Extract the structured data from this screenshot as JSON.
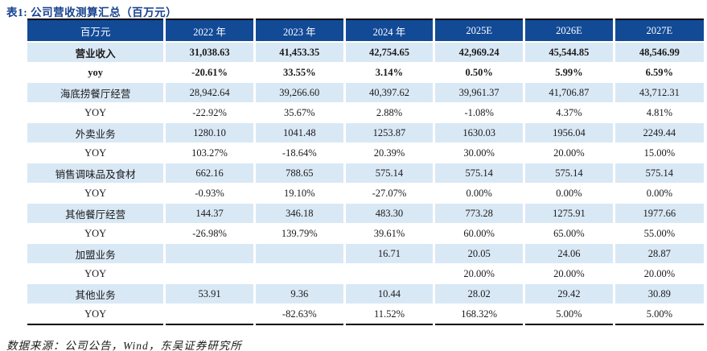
{
  "page": {
    "title": "表1:  公司营收测算汇总（百万元）",
    "source_note": "数据来源：公司公告，Wind，东吴证券研究所"
  },
  "colors": {
    "header_bg": "#124A96",
    "header_text": "#FFFFFF",
    "shaded_row_bg": "#D9E8F5",
    "title_color": "#15418F"
  },
  "table": {
    "columns": [
      "百万元",
      "2022 年",
      "2023 年",
      "2024 年",
      "2025E",
      "2026E",
      "2027E"
    ],
    "rows": [
      {
        "label": "营业收入",
        "bold": true,
        "shaded": true,
        "values": [
          "31,038.63",
          "41,453.35",
          "42,754.65",
          "42,969.24",
          "45,544.85",
          "48,546.99"
        ]
      },
      {
        "label": "yoy",
        "bold": true,
        "shaded": false,
        "values": [
          "-20.61%",
          "33.55%",
          "3.14%",
          "0.50%",
          "5.99%",
          "6.59%"
        ]
      },
      {
        "label": "海底捞餐厅经营",
        "bold": false,
        "shaded": true,
        "values": [
          "28,942.64",
          "39,266.60",
          "40,397.62",
          "39,961.37",
          "41,706.87",
          "43,712.31"
        ]
      },
      {
        "label": "YOY",
        "bold": false,
        "shaded": false,
        "values": [
          "-22.92%",
          "35.67%",
          "2.88%",
          "-1.08%",
          "4.37%",
          "4.81%"
        ]
      },
      {
        "label": "外卖业务",
        "bold": false,
        "shaded": true,
        "values": [
          "1280.10",
          "1041.48",
          "1253.87",
          "1630.03",
          "1956.04",
          "2249.44"
        ]
      },
      {
        "label": "YOY",
        "bold": false,
        "shaded": false,
        "values": [
          "103.27%",
          "-18.64%",
          "20.39%",
          "30.00%",
          "20.00%",
          "15.00%"
        ]
      },
      {
        "label": "销售调味品及食材",
        "bold": false,
        "shaded": true,
        "values": [
          "662.16",
          "788.65",
          "575.14",
          "575.14",
          "575.14",
          "575.14"
        ]
      },
      {
        "label": "YOY",
        "bold": false,
        "shaded": false,
        "values": [
          "-0.93%",
          "19.10%",
          "-27.07%",
          "0.00%",
          "0.00%",
          "0.00%"
        ]
      },
      {
        "label": "其他餐厅经营",
        "bold": false,
        "shaded": true,
        "values": [
          "144.37",
          "346.18",
          "483.30",
          "773.28",
          "1275.91",
          "1977.66"
        ]
      },
      {
        "label": "YOY",
        "bold": false,
        "shaded": false,
        "values": [
          "-26.98%",
          "139.79%",
          "39.61%",
          "60.00%",
          "65.00%",
          "55.00%"
        ]
      },
      {
        "label": "加盟业务",
        "bold": false,
        "shaded": true,
        "values": [
          "",
          "",
          "16.71",
          "20.05",
          "24.06",
          "28.87"
        ]
      },
      {
        "label": "YOY",
        "bold": false,
        "shaded": false,
        "values": [
          "",
          "",
          "",
          "20.00%",
          "20.00%",
          "20.00%"
        ]
      },
      {
        "label": "其他业务",
        "bold": false,
        "shaded": true,
        "values": [
          "53.91",
          "9.36",
          "10.44",
          "28.02",
          "29.42",
          "30.89"
        ]
      },
      {
        "label": "YOY",
        "bold": false,
        "shaded": false,
        "values": [
          "",
          "-82.63%",
          "11.52%",
          "168.32%",
          "5.00%",
          "5.00%"
        ]
      }
    ]
  }
}
